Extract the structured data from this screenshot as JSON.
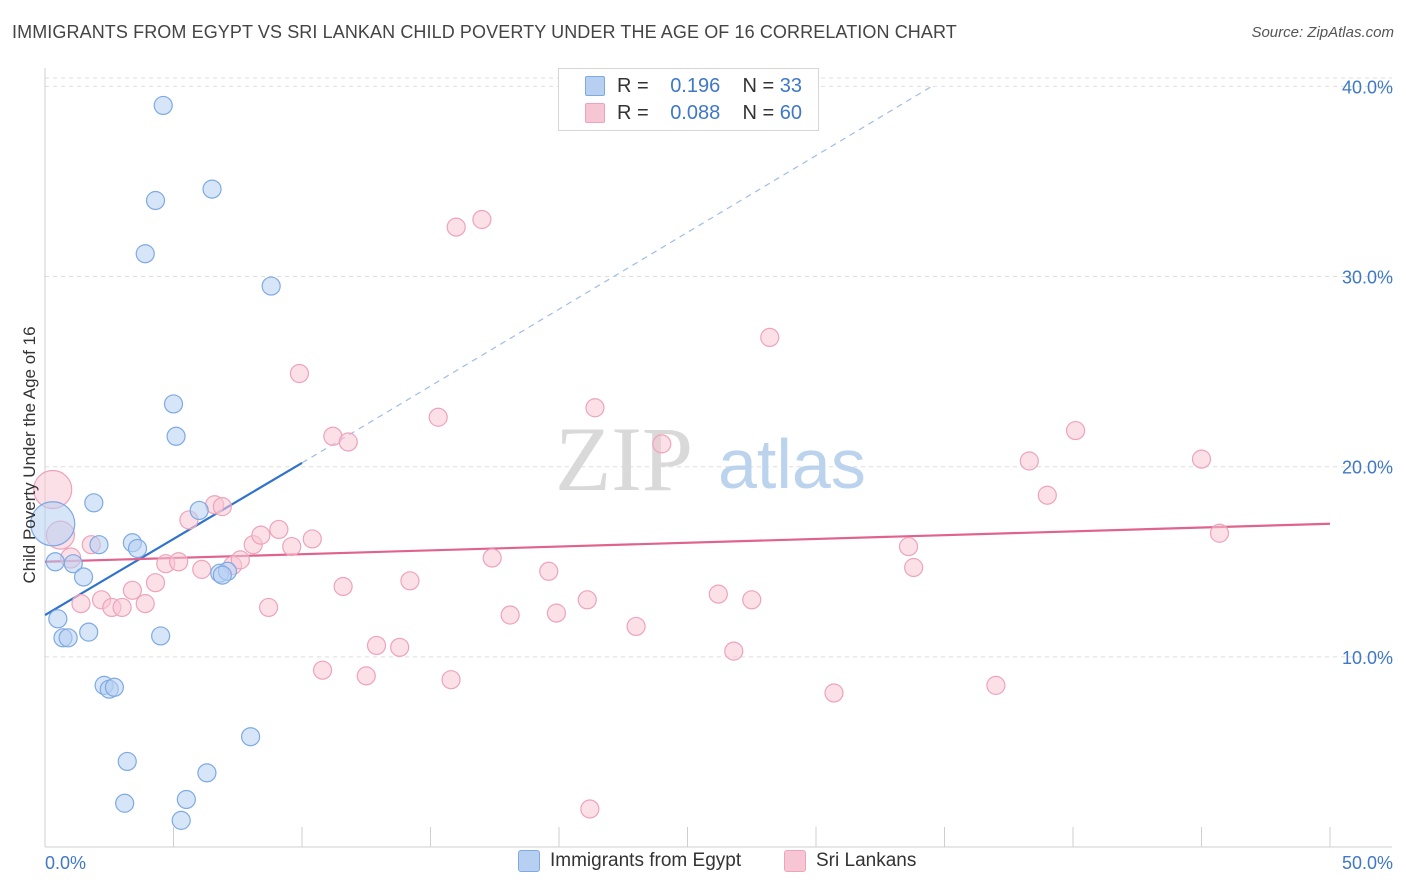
{
  "title": "IMMIGRANTS FROM EGYPT VS SRI LANKAN CHILD POVERTY UNDER THE AGE OF 16 CORRELATION CHART",
  "source": "Source: ZipAtlas.com",
  "watermark": {
    "zip": "ZIP",
    "atlas": "atlas"
  },
  "legend": {
    "r_label": "R =",
    "n_label": "N =",
    "rows": [
      {
        "r": "0.196",
        "n": "33"
      },
      {
        "r": "0.088",
        "n": "60"
      }
    ]
  },
  "colors": {
    "egypt_fill": "#b7d0f2",
    "egypt_stroke": "#7eaae2",
    "egypt_line": "#2f73cb",
    "srilanka_fill": "#f7c6d5",
    "srilanka_stroke": "#eea3bb",
    "srilanka_line": "#e0638d",
    "tick_label": "#3f78c7",
    "grid": "#dddddd"
  },
  "chart_data": {
    "type": "scatter",
    "title": "IMMIGRANTS FROM EGYPT VS SRI LANKAN CHILD POVERTY UNDER THE AGE OF 16 CORRELATION CHART",
    "xlabel": "",
    "ylabel": "Child Poverty Under the Age of 16",
    "xlim": [
      0,
      50
    ],
    "ylim": [
      0,
      40.6
    ],
    "x_tick_labels": [
      {
        "value": 0,
        "label": "0.0%"
      },
      {
        "value": 50,
        "label": "50.0%"
      }
    ],
    "y_tick_labels": [
      {
        "value": 10,
        "label": "10.0%"
      },
      {
        "value": 20,
        "label": "20.0%"
      },
      {
        "value": 30,
        "label": "30.0%"
      },
      {
        "value": 40,
        "label": "40.0%"
      }
    ],
    "grid": true,
    "legend_position": "top-center",
    "series": [
      {
        "name": "Immigrants from Egypt",
        "r": 0.196,
        "n": 33,
        "points": [
          [
            0.3,
            17.0,
            22
          ],
          [
            0.4,
            15.0,
            9
          ],
          [
            0.5,
            12.0,
            9
          ],
          [
            0.7,
            11.0,
            9
          ],
          [
            0.9,
            11.0,
            9
          ],
          [
            1.1,
            14.9,
            9
          ],
          [
            1.5,
            14.2,
            9
          ],
          [
            1.7,
            11.3,
            9
          ],
          [
            1.9,
            18.1,
            9
          ],
          [
            2.1,
            15.9,
            9
          ],
          [
            2.3,
            8.5,
            9
          ],
          [
            2.5,
            8.3,
            9
          ],
          [
            2.7,
            8.4,
            9
          ],
          [
            3.2,
            4.5,
            9
          ],
          [
            3.1,
            2.3,
            9
          ],
          [
            3.4,
            16.0,
            9
          ],
          [
            3.6,
            15.7,
            9
          ],
          [
            3.9,
            31.2,
            9
          ],
          [
            4.3,
            34.0,
            9
          ],
          [
            4.5,
            11.1,
            9
          ],
          [
            4.6,
            39.0,
            9
          ],
          [
            5.0,
            23.3,
            9
          ],
          [
            5.1,
            21.6,
            9
          ],
          [
            5.3,
            1.4,
            9
          ],
          [
            5.5,
            2.5,
            9
          ],
          [
            6.0,
            17.7,
            9
          ],
          [
            6.3,
            3.9,
            9
          ],
          [
            6.5,
            34.6,
            9
          ],
          [
            6.8,
            14.4,
            9
          ],
          [
            7.1,
            14.5,
            9
          ],
          [
            8.0,
            5.8,
            9
          ],
          [
            8.8,
            29.5,
            9
          ],
          [
            6.9,
            14.3,
            9
          ]
        ],
        "trend": {
          "x": [
            0,
            10
          ],
          "y": [
            12.2,
            20.2
          ]
        },
        "trend_extension": {
          "x": [
            10,
            34.5
          ],
          "y": [
            20.2,
            40.0
          ]
        }
      },
      {
        "name": "Sri Lankans",
        "r": 0.088,
        "n": 60,
        "points": [
          [
            0.3,
            18.8,
            19
          ],
          [
            0.6,
            16.4,
            14
          ],
          [
            1.0,
            15.2,
            10
          ],
          [
            1.4,
            12.8,
            9
          ],
          [
            1.8,
            15.9,
            9
          ],
          [
            2.2,
            13.0,
            9
          ],
          [
            2.6,
            12.6,
            9
          ],
          [
            3.0,
            12.6,
            9
          ],
          [
            3.4,
            13.5,
            9
          ],
          [
            3.9,
            12.8,
            9
          ],
          [
            4.3,
            13.9,
            9
          ],
          [
            4.7,
            14.9,
            9
          ],
          [
            5.2,
            15.0,
            9
          ],
          [
            5.6,
            17.2,
            9
          ],
          [
            6.1,
            14.6,
            9
          ],
          [
            6.6,
            18.0,
            9
          ],
          [
            6.9,
            17.9,
            9
          ],
          [
            7.3,
            14.8,
            9
          ],
          [
            7.6,
            15.1,
            9
          ],
          [
            8.1,
            15.9,
            9
          ],
          [
            8.4,
            16.4,
            9
          ],
          [
            8.7,
            12.6,
            9
          ],
          [
            9.1,
            16.7,
            9
          ],
          [
            9.6,
            15.8,
            9
          ],
          [
            9.9,
            24.9,
            9
          ],
          [
            10.4,
            16.2,
            9
          ],
          [
            10.8,
            9.3,
            9
          ],
          [
            11.2,
            21.6,
            9
          ],
          [
            11.6,
            13.7,
            9
          ],
          [
            11.8,
            21.3,
            9
          ],
          [
            12.5,
            9.0,
            9
          ],
          [
            12.9,
            10.6,
            9
          ],
          [
            13.8,
            10.5,
            9
          ],
          [
            14.2,
            14.0,
            9
          ],
          [
            15.3,
            22.6,
            9
          ],
          [
            15.8,
            8.8,
            9
          ],
          [
            16.0,
            32.6,
            9
          ],
          [
            17.0,
            33.0,
            9
          ],
          [
            17.4,
            15.2,
            9
          ],
          [
            18.1,
            12.2,
            9
          ],
          [
            19.6,
            14.5,
            9
          ],
          [
            19.9,
            12.3,
            9
          ],
          [
            21.1,
            13.0,
            9
          ],
          [
            21.2,
            2.0,
            9
          ],
          [
            21.4,
            23.1,
            9
          ],
          [
            23.0,
            11.6,
            9
          ],
          [
            24.0,
            21.2,
            9
          ],
          [
            26.2,
            13.3,
            9
          ],
          [
            26.8,
            10.3,
            9
          ],
          [
            27.5,
            13.0,
            9
          ],
          [
            28.2,
            26.8,
            9
          ],
          [
            30.7,
            8.1,
            9
          ],
          [
            33.6,
            15.8,
            9
          ],
          [
            33.8,
            14.7,
            9
          ],
          [
            37.0,
            8.5,
            9
          ],
          [
            38.3,
            20.3,
            9
          ],
          [
            39.0,
            18.5,
            9
          ],
          [
            40.1,
            21.9,
            9
          ],
          [
            45.0,
            20.4,
            9
          ],
          [
            45.7,
            16.5,
            9
          ]
        ],
        "trend": {
          "x": [
            0,
            50
          ],
          "y": [
            15.0,
            17.0
          ]
        }
      }
    ]
  },
  "bottom_legend": [
    "Immigrants from Egypt",
    "Sri Lankans"
  ]
}
